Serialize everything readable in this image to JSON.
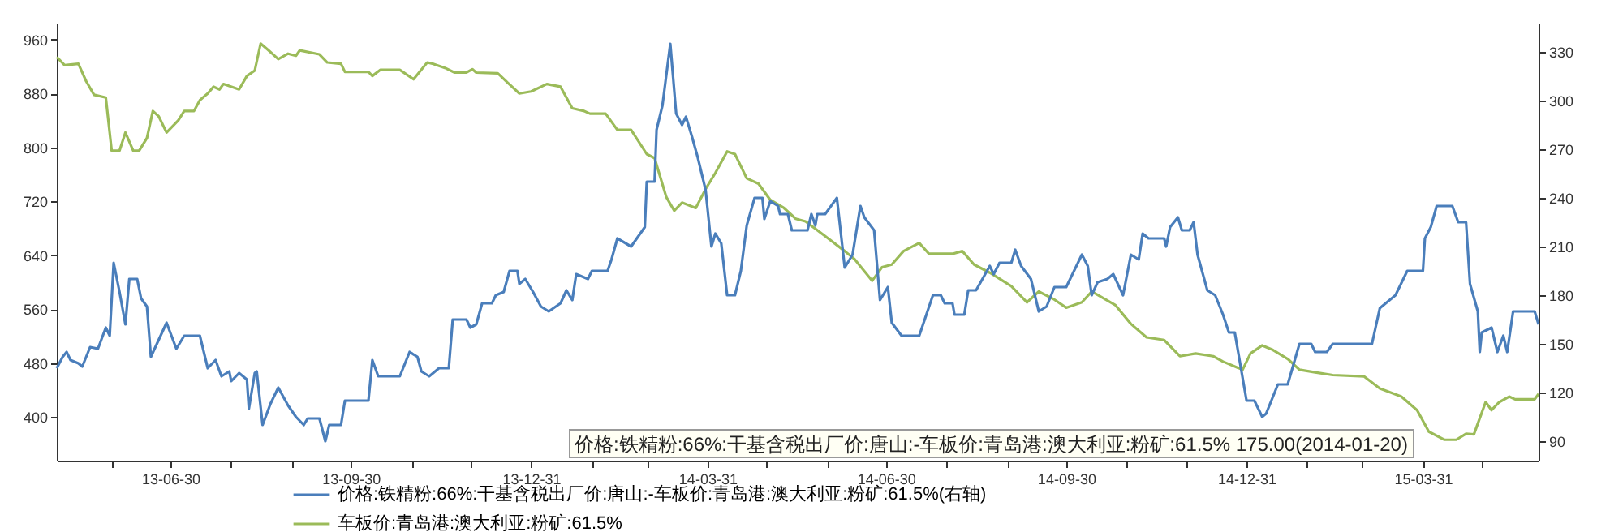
{
  "chart_data": {
    "type": "line",
    "xlim": [
      "2013-05-03",
      "2015-05-29"
    ],
    "xticks": [
      {
        "value": "2013-05-31",
        "label": null
      },
      {
        "value": "2013-06-30",
        "label": "13-06-30"
      },
      {
        "value": "2013-07-31",
        "label": null
      },
      {
        "value": "2013-08-31",
        "label": null
      },
      {
        "value": "2013-09-30",
        "label": "13-09-30"
      },
      {
        "value": "2013-10-31",
        "label": null
      },
      {
        "value": "2013-11-30",
        "label": null
      },
      {
        "value": "2013-12-31",
        "label": "13-12-31"
      },
      {
        "value": "2014-01-31",
        "label": null
      },
      {
        "value": "2014-02-28",
        "label": null
      },
      {
        "value": "2014-03-31",
        "label": "14-03-31"
      },
      {
        "value": "2014-04-30",
        "label": null
      },
      {
        "value": "2014-05-31",
        "label": null
      },
      {
        "value": "2014-06-30",
        "label": "14-06-30"
      },
      {
        "value": "2014-07-31",
        "label": null
      },
      {
        "value": "2014-08-31",
        "label": null
      },
      {
        "value": "2014-09-30",
        "label": "14-09-30"
      },
      {
        "value": "2014-10-31",
        "label": null
      },
      {
        "value": "2014-11-30",
        "label": null
      },
      {
        "value": "2014-12-31",
        "label": "14-12-31"
      },
      {
        "value": "2015-01-31",
        "label": null
      },
      {
        "value": "2015-02-28",
        "label": null
      },
      {
        "value": "2015-03-31",
        "label": "15-03-31"
      },
      {
        "value": "2015-04-30",
        "label": null
      }
    ],
    "ylim": [
      335,
      985
    ],
    "yticks": [
      400,
      480,
      560,
      640,
      720,
      800,
      880,
      960
    ],
    "y2lim": [
      78,
      348
    ],
    "y2ticks": [
      90,
      120,
      150,
      180,
      210,
      240,
      270,
      300,
      330
    ],
    "legend": "bottom",
    "marker": "none",
    "annotations": [
      "价格:铁精粉:66%:干基含税出厂价:唐山:-车板价:青岛港:澳大利亚:粉矿:61.5% 175.00(2014-01-20)"
    ],
    "series": [
      {
        "name": "价格:铁精粉:66%:干基含税出厂价:唐山:-车板价:青岛港:澳大利亚:粉矿:61.5%(右轴)",
        "color": "#4a7ebb",
        "axis": "y2",
        "x": [
          "2013-05-03",
          "2013-05-06",
          "2013-05-08",
          "2013-05-10",
          "2013-05-14",
          "2013-05-16",
          "2013-05-20",
          "2013-05-24",
          "2013-05-28",
          "2013-05-30",
          "2013-06-01",
          "2013-06-04",
          "2013-06-07",
          "2013-06-09",
          "2013-06-13",
          "2013-06-15",
          "2013-06-18",
          "2013-06-20",
          "2013-06-28",
          "2013-07-03",
          "2013-07-07",
          "2013-07-15",
          "2013-07-19",
          "2013-07-23",
          "2013-07-26",
          "2013-07-30",
          "2013-07-31",
          "2013-08-04",
          "2013-08-08",
          "2013-08-09",
          "2013-08-12",
          "2013-08-13",
          "2013-08-16",
          "2013-08-20",
          "2013-08-24",
          "2013-08-29",
          "2013-09-02",
          "2013-09-06",
          "2013-09-08",
          "2013-09-14",
          "2013-09-17",
          "2013-09-19",
          "2013-09-25",
          "2013-09-27",
          "2013-10-09",
          "2013-10-11",
          "2013-10-14",
          "2013-10-25",
          "2013-10-30",
          "2013-11-03",
          "2013-11-05",
          "2013-11-09",
          "2013-11-14",
          "2013-11-19",
          "2013-11-21",
          "2013-11-28",
          "2013-11-30",
          "2013-12-03",
          "2013-12-06",
          "2013-12-11",
          "2013-12-13",
          "2013-12-17",
          "2013-12-20",
          "2013-12-24",
          "2013-12-25",
          "2013-12-28",
          "2014-01-01",
          "2014-01-05",
          "2014-01-09",
          "2014-01-15",
          "2014-01-18",
          "2014-01-21",
          "2014-01-23",
          "2014-01-29",
          "2014-01-31",
          "2014-02-08",
          "2014-02-10",
          "2014-02-13",
          "2014-02-20",
          "2014-02-27",
          "2014-02-28",
          "2014-03-04",
          "2014-03-05",
          "2014-03-08",
          "2014-03-12",
          "2014-03-15",
          "2014-03-18",
          "2014-03-20",
          "2014-03-23",
          "2014-03-26",
          "2014-03-30",
          "2014-04-02",
          "2014-04-04",
          "2014-04-07",
          "2014-04-10",
          "2014-04-14",
          "2014-04-17",
          "2014-04-20",
          "2014-04-24",
          "2014-04-28",
          "2014-04-29",
          "2014-05-02",
          "2014-05-06",
          "2014-05-07",
          "2014-05-11",
          "2014-05-13",
          "2014-05-21",
          "2014-05-23",
          "2014-05-25",
          "2014-05-26",
          "2014-05-30",
          "2014-06-05",
          "2014-06-09",
          "2014-06-13",
          "2014-06-17",
          "2014-06-19",
          "2014-06-24",
          "2014-06-27",
          "2014-07-01",
          "2014-07-03",
          "2014-07-08",
          "2014-07-17",
          "2014-07-24",
          "2014-07-28",
          "2014-07-30",
          "2014-08-03",
          "2014-08-04",
          "2014-08-09",
          "2014-08-11",
          "2014-08-15",
          "2014-08-22",
          "2014-08-24",
          "2014-08-27",
          "2014-09-02",
          "2014-09-04",
          "2014-09-07",
          "2014-09-12",
          "2014-09-16",
          "2014-09-20",
          "2014-09-24",
          "2014-09-30",
          "2014-10-08",
          "2014-10-11",
          "2014-10-13",
          "2014-10-16",
          "2014-10-21",
          "2014-10-24",
          "2014-10-29",
          "2014-11-02",
          "2014-11-06",
          "2014-11-08",
          "2014-11-11",
          "2014-11-19",
          "2014-11-20",
          "2014-11-22",
          "2014-11-26",
          "2014-11-28",
          "2014-12-02",
          "2014-12-04",
          "2014-12-06",
          "2014-12-11",
          "2014-12-15",
          "2014-12-19",
          "2014-12-22",
          "2014-12-25",
          "2014-12-31",
          "2015-01-04",
          "2015-01-08",
          "2015-01-10",
          "2015-01-16",
          "2015-01-21",
          "2015-01-27",
          "2015-02-02",
          "2015-02-04",
          "2015-02-10",
          "2015-02-13",
          "2015-03-05",
          "2015-03-09",
          "2015-03-17",
          "2015-03-23",
          "2015-03-31",
          "2015-04-01",
          "2015-04-04",
          "2015-04-07",
          "2015-04-15",
          "2015-04-18",
          "2015-04-22",
          "2015-04-24",
          "2015-04-28",
          "2015-04-29",
          "2015-04-30",
          "2015-05-05",
          "2015-05-08",
          "2015-05-11",
          "2015-05-13",
          "2015-05-16",
          "2015-05-27",
          "2015-05-29"
        ],
        "values": [
          135,
          142,
          145,
          140,
          138,
          136,
          148,
          147,
          160,
          155,
          200,
          182,
          162,
          190,
          190,
          178,
          173,
          142,
          163,
          147,
          155,
          155,
          135,
          140,
          130,
          133,
          127,
          132,
          128,
          110,
          132,
          133,
          100,
          113,
          123,
          112,
          105,
          100,
          104,
          104,
          90,
          100,
          100,
          115,
          115,
          140,
          130,
          130,
          145,
          142,
          133,
          130,
          135,
          135,
          165,
          165,
          160,
          162,
          175,
          175,
          180,
          182,
          195,
          195,
          187,
          190,
          182,
          173,
          170,
          175,
          183,
          177,
          193,
          190,
          195,
          195,
          202,
          215,
          210,
          222,
          250,
          250,
          282,
          297,
          335,
          292,
          285,
          290,
          278,
          265,
          245,
          210,
          218,
          212,
          180,
          180,
          195,
          223,
          240,
          240,
          227,
          238,
          235,
          230,
          230,
          220,
          220,
          230,
          223,
          230,
          230,
          240,
          197,
          205,
          235,
          228,
          220,
          177,
          185,
          163,
          155,
          155,
          180,
          180,
          175,
          175,
          168,
          168,
          183,
          183,
          198,
          193,
          200,
          200,
          208,
          198,
          190,
          170,
          173,
          185,
          185,
          205,
          198,
          180,
          188,
          190,
          193,
          180,
          205,
          202,
          218,
          215,
          215,
          210,
          222,
          228,
          220,
          220,
          225,
          205,
          183,
          180,
          168,
          157,
          157,
          115,
          115,
          105,
          107,
          125,
          125,
          150,
          150,
          145,
          145,
          150,
          150,
          172,
          180,
          195,
          195,
          215,
          222,
          235,
          235,
          225,
          225,
          187,
          170,
          145,
          157,
          160,
          145,
          155,
          145,
          170,
          170,
          162
        ]
      },
      {
        "name": "车板价:青岛港:澳大利亚:粉矿:61.5%",
        "color": "#9bbb59",
        "x": [
          "2013-05-03",
          "2013-05-07",
          "2013-05-14",
          "2013-05-18",
          "2013-05-22",
          "2013-05-28",
          "2013-05-31",
          "2013-06-04",
          "2013-06-07",
          "2013-06-11",
          "2013-06-14",
          "2013-06-18",
          "2013-06-21",
          "2013-06-24",
          "2013-06-28",
          "2013-07-04",
          "2013-07-07",
          "2013-07-12",
          "2013-07-15",
          "2013-07-19",
          "2013-07-22",
          "2013-07-25",
          "2013-07-27",
          "2013-08-04",
          "2013-08-08",
          "2013-08-12",
          "2013-08-15",
          "2013-08-19",
          "2013-08-24",
          "2013-08-29",
          "2013-09-02",
          "2013-09-04",
          "2013-09-14",
          "2013-09-18",
          "2013-09-25",
          "2013-09-27",
          "2013-10-09",
          "2013-10-11",
          "2013-10-15",
          "2013-10-25",
          "2013-11-01",
          "2013-11-08",
          "2013-11-11",
          "2013-11-17",
          "2013-11-22",
          "2013-11-28",
          "2013-12-01",
          "2013-12-03",
          "2013-12-14",
          "2013-12-19",
          "2013-12-25",
          "2013-12-31",
          "2014-01-08",
          "2014-01-15",
          "2014-01-21",
          "2014-01-27",
          "2014-01-30",
          "2014-02-07",
          "2014-02-13",
          "2014-02-20",
          "2014-02-28",
          "2014-03-04",
          "2014-03-10",
          "2014-03-14",
          "2014-03-18",
          "2014-03-25",
          "2014-03-30",
          "2014-04-04",
          "2014-04-10",
          "2014-04-14",
          "2014-04-20",
          "2014-04-26",
          "2014-05-02",
          "2014-05-09",
          "2014-05-15",
          "2014-05-20",
          "2014-05-31",
          "2014-06-09",
          "2014-06-14",
          "2014-06-23",
          "2014-06-28",
          "2014-07-03",
          "2014-07-09",
          "2014-07-17",
          "2014-07-22",
          "2014-08-03",
          "2014-08-08",
          "2014-08-14",
          "2014-08-22",
          "2014-09-02",
          "2014-09-10",
          "2014-09-16",
          "2014-09-24",
          "2014-09-30",
          "2014-10-08",
          "2014-10-13",
          "2014-10-25",
          "2014-11-02",
          "2014-11-10",
          "2014-11-19",
          "2014-11-27",
          "2014-12-05",
          "2014-12-14",
          "2014-12-19",
          "2014-12-29",
          "2015-01-02",
          "2015-01-08",
          "2015-01-13",
          "2015-01-21",
          "2015-01-27",
          "2015-02-04",
          "2015-02-13",
          "2015-03-01",
          "2015-03-09",
          "2015-03-20",
          "2015-03-28",
          "2015-04-03",
          "2015-04-11",
          "2015-04-17",
          "2015-04-22",
          "2015-04-26",
          "2015-04-29",
          "2015-05-02",
          "2015-05-05",
          "2015-05-09",
          "2015-05-14",
          "2015-05-17",
          "2015-05-27",
          "2015-05-29"
        ],
        "values": [
          934,
          922,
          924,
          898,
          878,
          874,
          795,
          795,
          822,
          795,
          795,
          814,
          854,
          846,
          822,
          840,
          854,
          854,
          870,
          880,
          890,
          886,
          894,
          886,
          906,
          914,
          954,
          944,
          931,
          939,
          936,
          944,
          938,
          926,
          924,
          912,
          912,
          906,
          915,
          915,
          901,
          926,
          924,
          918,
          911,
          911,
          916,
          911,
          910,
          896,
          880,
          883,
          894,
          890,
          858,
          854,
          850,
          850,
          826,
          826,
          790,
          784,
          726,
          706,
          718,
          710,
          738,
          762,
          794,
          790,
          754,
          746,
          722,
          710,
          694,
          690,
          666,
          646,
          634,
          602,
          622,
          626,
          646,
          658,
          642,
          642,
          646,
          626,
          614,
          594,
          570,
          586,
          574,
          562,
          570,
          586,
          566,
          538,
          518,
          514,
          490,
          494,
          490,
          482,
          470,
          494,
          506,
          500,
          486,
          470,
          466,
          462,
          460,
          442,
          430,
          410,
          378,
          366,
          366,
          375,
          374,
          398,
          422,
          410,
          422,
          430,
          426,
          426,
          434
        ]
      }
    ]
  }
}
